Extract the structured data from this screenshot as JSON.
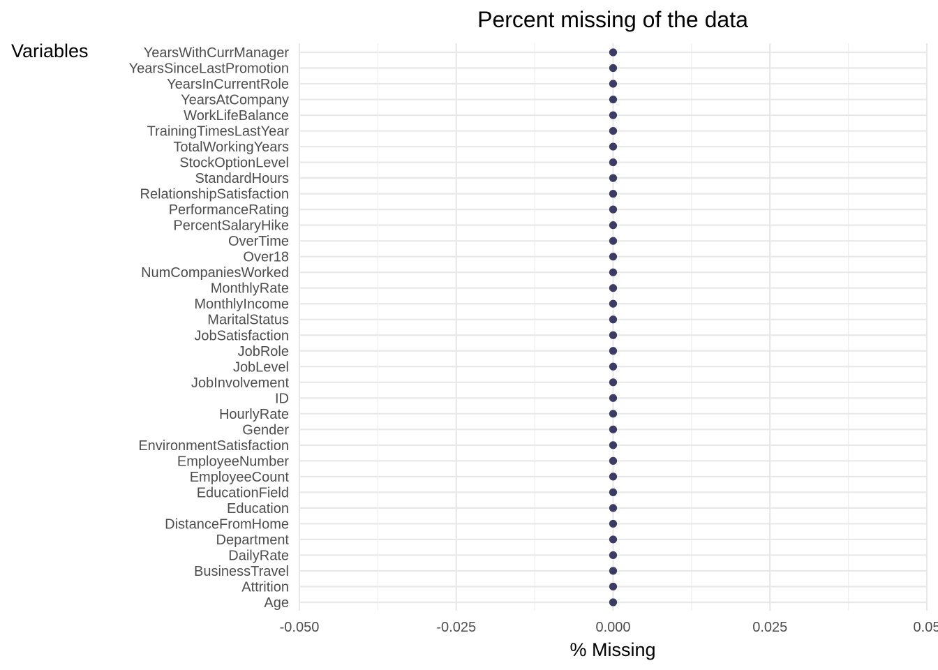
{
  "chart_data": {
    "type": "scatter",
    "title": "Percent missing of the data",
    "xlabel": "% Missing",
    "ylabel": "Variables",
    "xlim": [
      -0.05,
      0.05
    ],
    "x_ticks": [
      "-0.050",
      "-0.025",
      "0.000",
      "0.025",
      "0.05"
    ],
    "x_tick_values": [
      -0.05,
      -0.025,
      0,
      0.025,
      0.05
    ],
    "grid": true,
    "point_color": "#3b3b66",
    "categories": [
      "YearsWithCurrManager",
      "YearsSinceLastPromotion",
      "YearsInCurrentRole",
      "YearsAtCompany",
      "WorkLifeBalance",
      "TrainingTimesLastYear",
      "TotalWorkingYears",
      "StockOptionLevel",
      "StandardHours",
      "RelationshipSatisfaction",
      "PerformanceRating",
      "PercentSalaryHike",
      "OverTime",
      "Over18",
      "NumCompaniesWorked",
      "MonthlyRate",
      "MonthlyIncome",
      "MaritalStatus",
      "JobSatisfaction",
      "JobRole",
      "JobLevel",
      "JobInvolvement",
      "ID",
      "HourlyRate",
      "Gender",
      "EnvironmentSatisfaction",
      "EmployeeNumber",
      "EmployeeCount",
      "EducationField",
      "Education",
      "DistanceFromHome",
      "Department",
      "DailyRate",
      "BusinessTravel",
      "Attrition",
      "Age"
    ],
    "values": [
      0,
      0,
      0,
      0,
      0,
      0,
      0,
      0,
      0,
      0,
      0,
      0,
      0,
      0,
      0,
      0,
      0,
      0,
      0,
      0,
      0,
      0,
      0,
      0,
      0,
      0,
      0,
      0,
      0,
      0,
      0,
      0,
      0,
      0,
      0,
      0
    ]
  }
}
